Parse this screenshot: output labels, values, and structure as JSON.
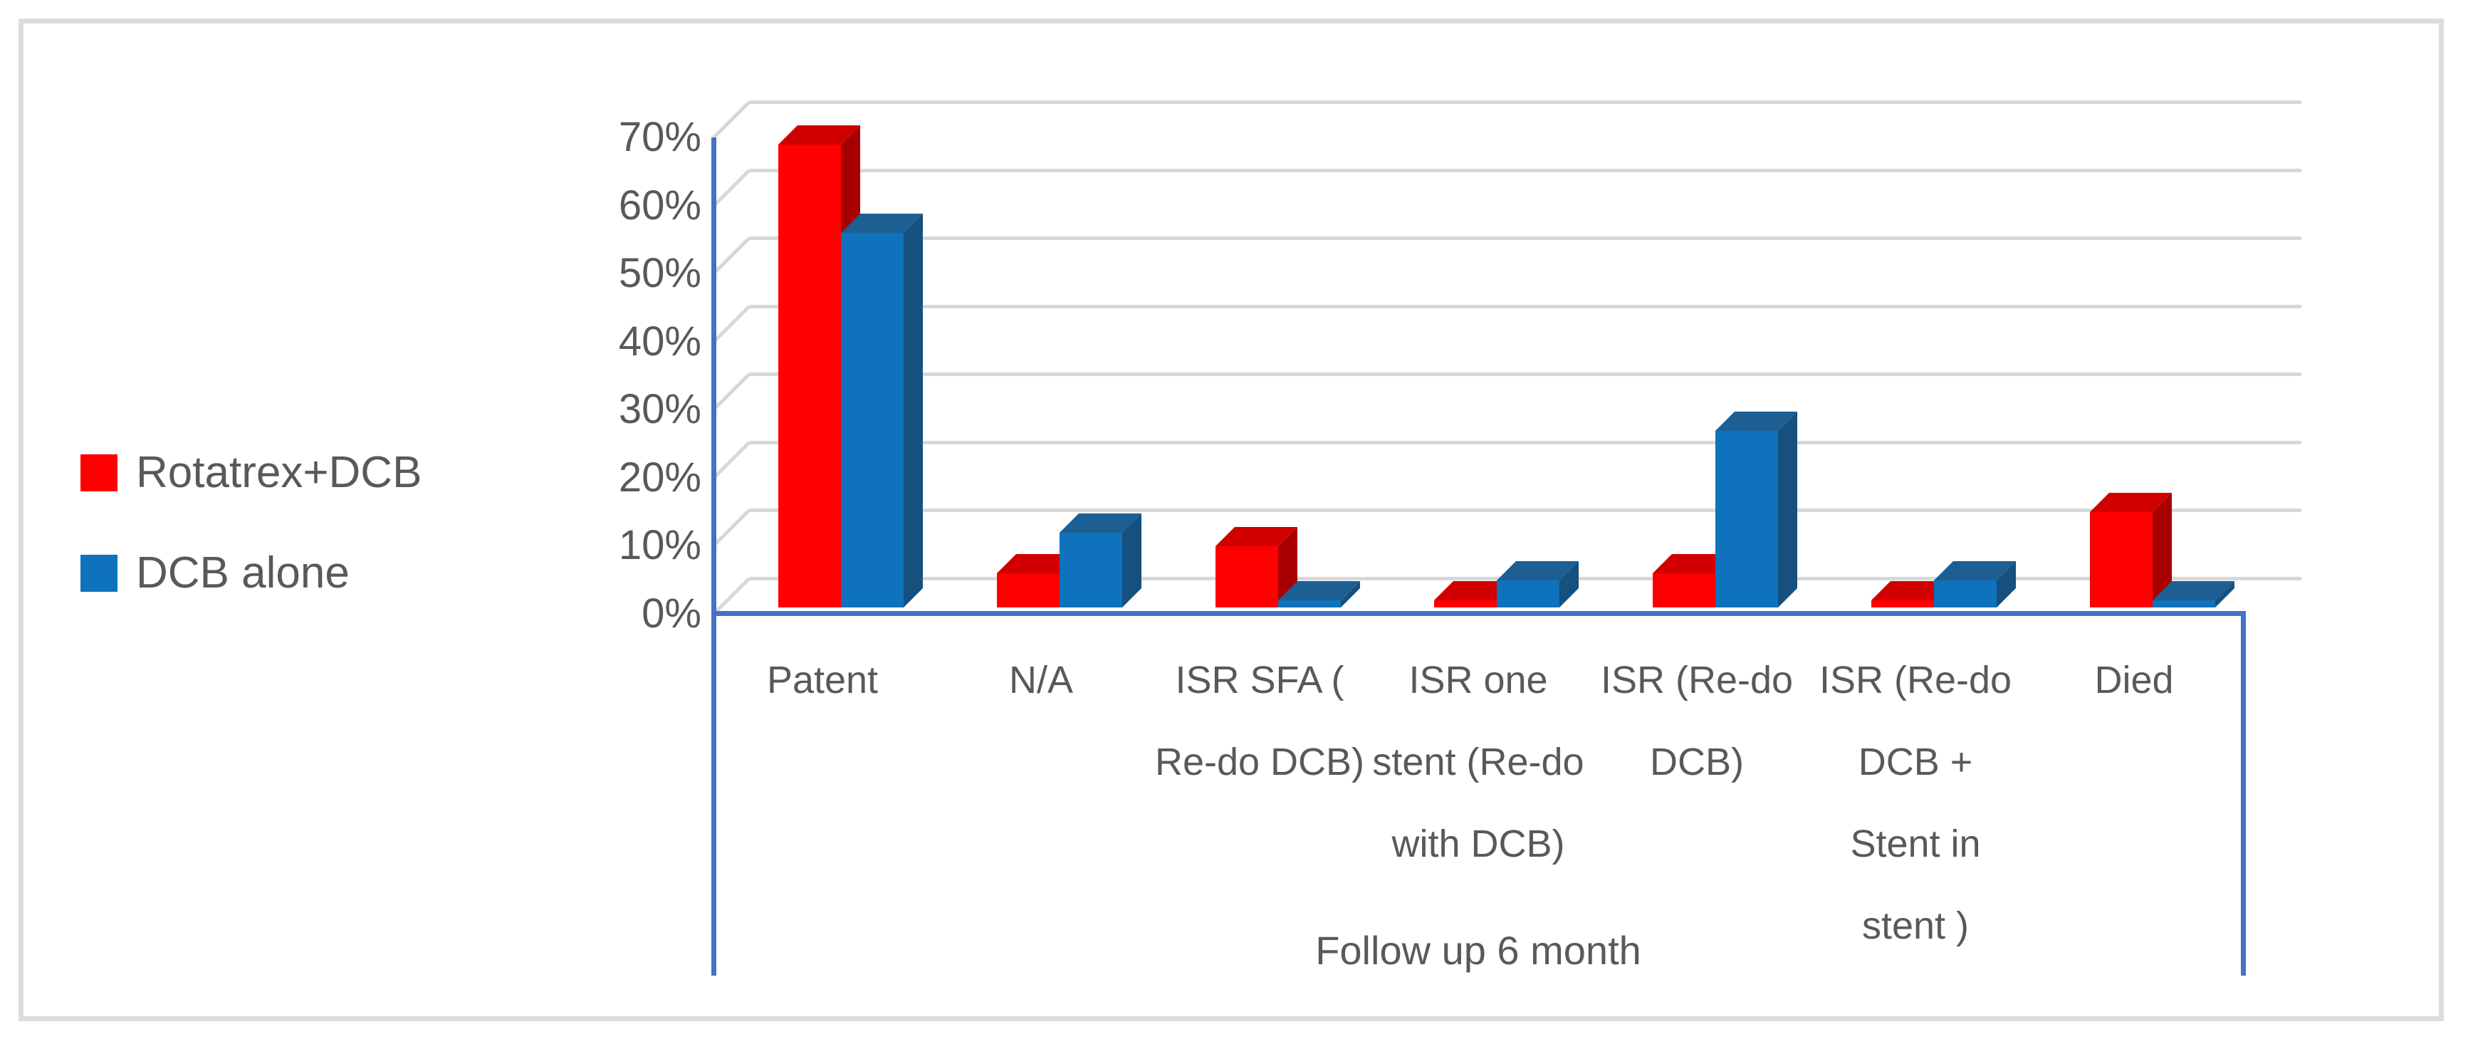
{
  "legend": {
    "items": [
      {
        "label": "Rotatrex+DCB",
        "color": "#FE0000"
      },
      {
        "label": "DCB alone",
        "color": "#0E72BC"
      }
    ]
  },
  "chart_data": {
    "type": "bar",
    "style": "3d-clustered-column",
    "title": "",
    "xlabel": "Follow up 6 month",
    "ylabel": "",
    "ylim": [
      0,
      70
    ],
    "y_tick_step": 10,
    "y_tick_labels": [
      "70%",
      "60%",
      "50%",
      "40%",
      "30%",
      "20%",
      "10%",
      "0%"
    ],
    "grid": true,
    "legend_position": "left",
    "categories": [
      "Patent",
      "N/A",
      "ISR SFA ( Re-do DCB)",
      "ISR one stent (Re-do with DCB)",
      "ISR (Re-do DCB)",
      "ISR (Re-do DCB + Stent in stent )",
      "Died"
    ],
    "series": [
      {
        "name": "Rotatrex+DCB",
        "color": "#FE0000",
        "values": [
          68,
          5,
          9,
          1,
          5,
          1,
          14
        ]
      },
      {
        "name": "DCB alone",
        "color": "#0E72BC",
        "values": [
          55,
          11,
          1,
          4,
          26,
          4,
          1
        ]
      }
    ]
  },
  "colors": {
    "red_front": "#FE0000",
    "red_top": "#D10000",
    "red_side": "#A80000",
    "blue_front": "#0E72BC",
    "blue_top": "#1E5F93",
    "blue_side": "#15507F",
    "axis_blue": "#4472C4",
    "gridline": "#D8D8D8",
    "text": "#595959",
    "frame_border": "#DCDCDC"
  }
}
